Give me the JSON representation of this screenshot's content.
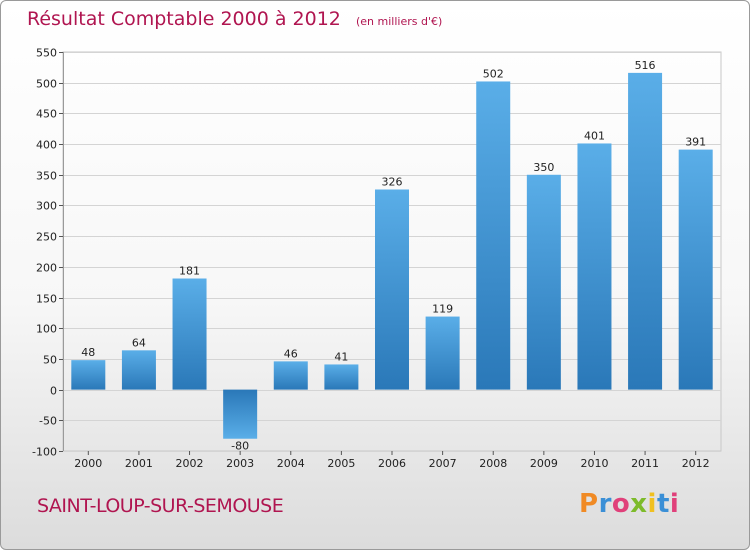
{
  "header": {
    "title": "Résultat Comptable 2000 à 2012",
    "subtitle": "(en milliers d'€)"
  },
  "footer": {
    "commune": "SAINT-LOUP-SUR-SEMOUSE",
    "logo_text": "Proxiti",
    "logo_colors": [
      "#f08a24",
      "#3a8fd6",
      "#e0407a",
      "#7dbb2a",
      "#f0c020",
      "#3a8fd6",
      "#e0407a"
    ]
  },
  "chart_data": {
    "type": "bar",
    "categories": [
      "2000",
      "2001",
      "2002",
      "2003",
      "2004",
      "2005",
      "2006",
      "2007",
      "2008",
      "2009",
      "2010",
      "2011",
      "2012"
    ],
    "values": [
      48,
      64,
      181,
      -80,
      46,
      41,
      326,
      119,
      502,
      350,
      401,
      516,
      391
    ],
    "ylim": [
      -100,
      550
    ],
    "yticks": [
      -100,
      -50,
      0,
      50,
      100,
      150,
      200,
      250,
      300,
      350,
      400,
      450,
      500,
      550
    ],
    "grid": true,
    "bar_color_light": "#5aaee8",
    "bar_color_dark": "#2a78b8"
  }
}
